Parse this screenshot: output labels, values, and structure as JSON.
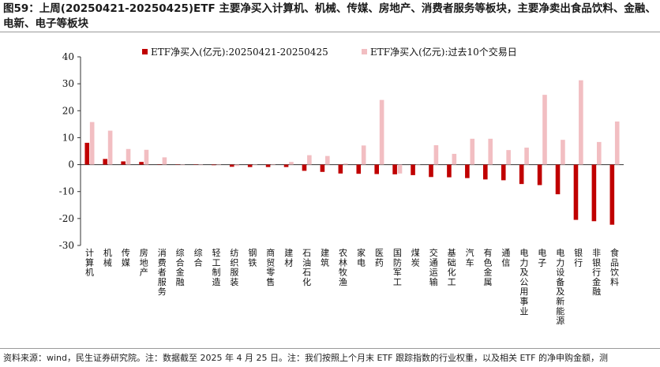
{
  "title": "图59：上周(20250421-20250425)ETF 主要净买入计算机、机械、传媒、房地产、消费者服务等板块，主要净卖出食品饮料、金融、电新、电子等板块",
  "source": "资料来源：wind，民生证券研究院。注：数据截至 2025 年 4 月 25 日。注：我们按照上个月末 ETF 跟踪指数的行业权重，以及相关 ETF 的净申购金额，测",
  "colors": {
    "week": "#C00000",
    "ten_day": "#F2BEC2"
  },
  "chart_data": {
    "type": "bar",
    "title": "",
    "xlabel": "",
    "ylabel": "",
    "ylim": [
      -30,
      40
    ],
    "yticks": [
      -30,
      -20,
      -10,
      0,
      10,
      20,
      30,
      40
    ],
    "grid": false,
    "legend_position": "top",
    "categories": [
      "计算机",
      "机械",
      "传媒",
      "房地产",
      "消费者服务",
      "综合金融",
      "综合",
      "轻工制造",
      "纺织服装",
      "钢铁",
      "商贸零售",
      "建材",
      "石油石化",
      "建筑",
      "农林牧渔",
      "家电",
      "医药",
      "国防军工",
      "煤炭",
      "交通运输",
      "基础化工",
      "汽车",
      "有色金属",
      "通信",
      "电力及公用事业",
      "电子",
      "电力设备及新能源",
      "银行",
      "非银行金融",
      "食品饮料"
    ],
    "series": [
      {
        "name": "ETF净买入(亿元):20250421-20250425",
        "values": [
          8.1,
          2.1,
          1.2,
          1.0,
          0.1,
          0.0,
          0.0,
          -0.2,
          -0.8,
          -0.9,
          -0.9,
          -0.9,
          -2.3,
          -2.7,
          -3.3,
          -3.4,
          -3.5,
          -3.6,
          -3.9,
          -4.6,
          -4.7,
          -5.0,
          -5.5,
          -5.8,
          -7.2,
          -7.6,
          -11.0,
          -20.5,
          -21.0,
          -22.3
        ]
      },
      {
        "name": "ETF净买入(亿元):过去10个交易日",
        "values": [
          15.8,
          12.6,
          5.8,
          5.5,
          2.7,
          -0.2,
          -0.2,
          0.2,
          -0.5,
          0.0,
          0.2,
          1.0,
          3.5,
          3.2,
          0.4,
          7.1,
          24.0,
          -3.3,
          0.0,
          7.2,
          4.0,
          9.6,
          9.6,
          5.4,
          6.3,
          25.9,
          9.2,
          31.3,
          8.4,
          16.0
        ]
      }
    ]
  }
}
